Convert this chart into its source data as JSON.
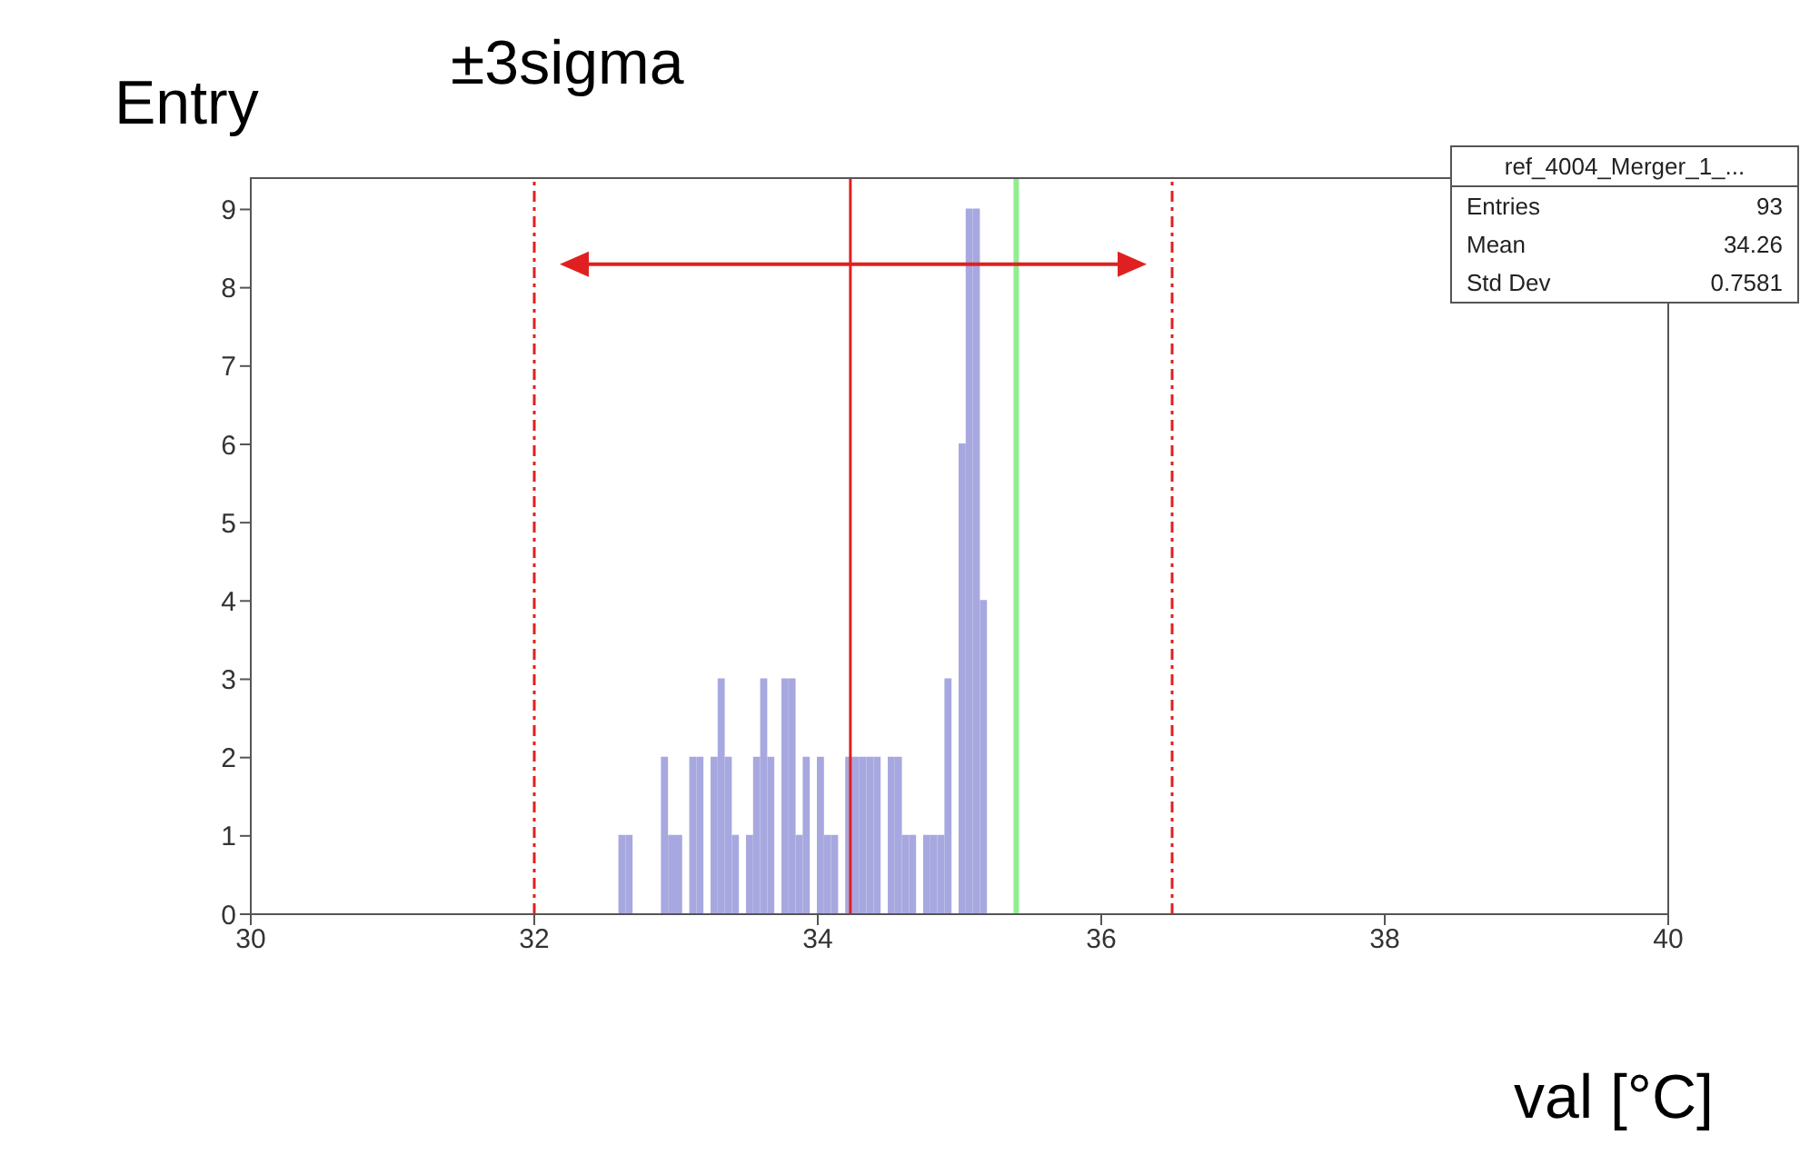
{
  "chart_data": {
    "type": "histogram",
    "title": "±3sigma",
    "xlabel": "val [°C]",
    "ylabel": "Entry",
    "bins": [
      32.6,
      32.65,
      32.7,
      32.75,
      32.8,
      32.85,
      32.9,
      32.95,
      33.0,
      33.05,
      33.1,
      33.15,
      33.2,
      33.25,
      33.3,
      33.35,
      33.4,
      33.45,
      33.5,
      33.55,
      33.6,
      33.65,
      33.7,
      33.75,
      33.8,
      33.85,
      33.9,
      33.95,
      34.0,
      34.05,
      34.1,
      34.15,
      34.2,
      34.25,
      34.3,
      34.35,
      34.4,
      34.45,
      34.5,
      34.55,
      34.6,
      34.65,
      34.7,
      34.75,
      34.8,
      34.85,
      34.9,
      34.95,
      35.0,
      35.05,
      35.1,
      35.15,
      35.2
    ],
    "values": [
      1,
      1,
      0,
      0,
      0,
      0,
      2,
      1,
      1,
      0,
      2,
      2,
      0,
      2,
      3,
      2,
      1,
      0,
      1,
      2,
      3,
      2,
      0,
      3,
      3,
      1,
      2,
      0,
      2,
      1,
      1,
      0,
      2,
      2,
      2,
      2,
      2,
      0,
      2,
      2,
      1,
      1,
      0,
      1,
      1,
      1,
      3,
      0,
      6,
      9,
      9,
      4
    ],
    "color": "#a8a8e0",
    "xlim": [
      30,
      40
    ],
    "xticks": [
      30,
      32,
      34,
      36,
      38,
      40
    ],
    "ylim": [
      0,
      9.4
    ],
    "yticks": [
      0,
      1,
      2,
      3,
      4,
      5,
      6,
      7,
      8,
      9
    ],
    "grid": false,
    "ref_lines": [
      {
        "axis": "x",
        "value": 32,
        "color": "#e02020",
        "line_style": "dashed"
      },
      {
        "axis": "x",
        "value": 36.5,
        "color": "#e02020",
        "line_style": "dashed"
      },
      {
        "axis": "x",
        "value": 34.23,
        "color": "#e02020",
        "line_style": "solid"
      },
      {
        "axis": "x",
        "value": 35.4,
        "color": "#90ee90",
        "line_style": "solid"
      }
    ],
    "annotations": [
      "ref_4004_Merger_1_...",
      "Entries",
      "93",
      "Mean",
      "34.26",
      "Std Dev",
      "0.7581"
    ]
  }
}
